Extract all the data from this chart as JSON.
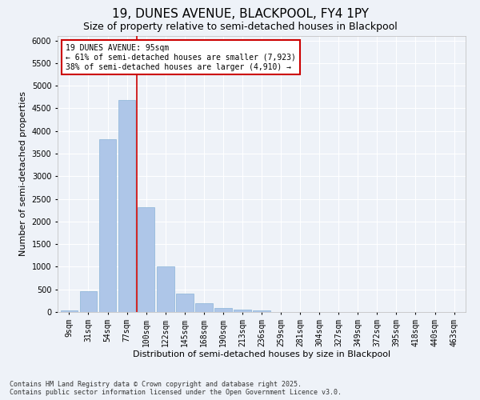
{
  "title1": "19, DUNES AVENUE, BLACKPOOL, FY4 1PY",
  "title2": "Size of property relative to semi-detached houses in Blackpool",
  "xlabel": "Distribution of semi-detached houses by size in Blackpool",
  "ylabel": "Number of semi-detached properties",
  "categories": [
    "9sqm",
    "31sqm",
    "54sqm",
    "77sqm",
    "100sqm",
    "122sqm",
    "145sqm",
    "168sqm",
    "190sqm",
    "213sqm",
    "236sqm",
    "259sqm",
    "281sqm",
    "304sqm",
    "327sqm",
    "349sqm",
    "372sqm",
    "395sqm",
    "418sqm",
    "440sqm",
    "463sqm"
  ],
  "values": [
    30,
    460,
    3820,
    4680,
    2310,
    1000,
    410,
    190,
    80,
    55,
    40,
    0,
    0,
    0,
    0,
    0,
    0,
    0,
    0,
    0,
    0
  ],
  "bar_color": "#aec6e8",
  "bar_edge_color": "#8ab4d8",
  "annotation_text": "19 DUNES AVENUE: 95sqm\n← 61% of semi-detached houses are smaller (7,923)\n38% of semi-detached houses are larger (4,910) →",
  "annotation_box_color": "#ffffff",
  "annotation_box_edge_color": "#cc0000",
  "red_line_color": "#cc0000",
  "ylim": [
    0,
    6100
  ],
  "yticks": [
    0,
    500,
    1000,
    1500,
    2000,
    2500,
    3000,
    3500,
    4000,
    4500,
    5000,
    5500,
    6000
  ],
  "background_color": "#eef2f8",
  "plot_background": "#eef2f8",
  "grid_color": "#ffffff",
  "footer_line1": "Contains HM Land Registry data © Crown copyright and database right 2025.",
  "footer_line2": "Contains public sector information licensed under the Open Government Licence v3.0.",
  "title1_fontsize": 11,
  "title2_fontsize": 9,
  "axis_label_fontsize": 8,
  "tick_fontsize": 7,
  "footer_fontsize": 6,
  "annot_fontsize": 7
}
